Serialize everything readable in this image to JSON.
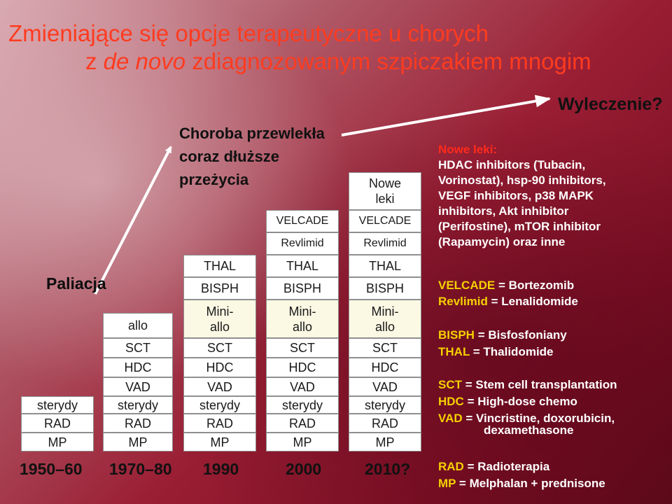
{
  "title": {
    "line1": "Zmieniające się opcje terapeutyczne u chorych",
    "line2_prefix": "z",
    "line2_italic": "de novo",
    "line2_rest": "zdiagnozowanym szpiczakiem mnogim"
  },
  "labels": {
    "paliacja": "Paliacja",
    "choroba": [
      "Choroba przewlekła",
      "coraz dłuższe",
      "przeżycia"
    ],
    "wyleczenie": "Wyleczenie?"
  },
  "columns": [
    {
      "year": "1950–60",
      "cells": [
        "sterydy",
        "RAD",
        "MP"
      ]
    },
    {
      "year": "1970–80",
      "cells": [
        "allo",
        "SCT",
        "HDC",
        "VAD",
        "sterydy",
        "RAD",
        "MP"
      ]
    },
    {
      "year": "1990",
      "cells": [
        "THAL",
        "BISPH",
        "Mini-allo",
        "SCT",
        "HDC",
        "VAD",
        "sterydy",
        "RAD",
        "MP"
      ]
    },
    {
      "year": "2000",
      "cells": [
        "VELCADE",
        "Revlimid",
        "THAL",
        "BISPH",
        "Mini-allo",
        "SCT",
        "HDC",
        "VAD",
        "sterydy",
        "RAD",
        "MP"
      ]
    },
    {
      "year": "2010?",
      "cells": [
        "Nowe leki",
        "VELCADE",
        "Revlimid",
        "THAL",
        "BISPH",
        "Mini-allo",
        "SCT",
        "HDC",
        "VAD",
        "sterydy",
        "RAD",
        "MP"
      ]
    }
  ],
  "legend": {
    "nowe_leki_key": "Nowe leki",
    "nowe_leki_colon": ":",
    "nowe_leki_lines": [
      "HDAC inhibitors (Tubacin,",
      "Vorinostat), hsp-90 inhibitors,",
      "VEGF inhibitors, p38 MAPK",
      "inhibitors, Akt inhibitor",
      "(Perifostine), mTOR inhibitor",
      "(Rapamycin) oraz inne"
    ],
    "items": [
      {
        "k": "VELCADE",
        "v": " = Bortezomib"
      },
      {
        "k": "Revlimid",
        "v": " = Lenalidomide"
      },
      {
        "k": "BISPH",
        "v": " = Bisfosfoniany"
      },
      {
        "k": "THAL",
        "v": " = Thalidomide"
      },
      {
        "k": "SCT",
        "v": " = Stem cell transplantation"
      },
      {
        "k": "HDC",
        "v": " = High-dose chemo"
      },
      {
        "k": "VAD",
        "v": " = Vincristine, doxorubicin,"
      },
      {
        "k": "",
        "v": "dexamethasone"
      },
      {
        "k": "RAD",
        "v": " = Radioterapia"
      },
      {
        "k": "MP",
        "v": " = Melphalan + prednisone"
      }
    ]
  },
  "colors": {
    "title": "#ff3b1f",
    "legend_key": "#f6d000",
    "legend_value": "#ffffff",
    "nowe_leki": "#ff2a1a"
  }
}
